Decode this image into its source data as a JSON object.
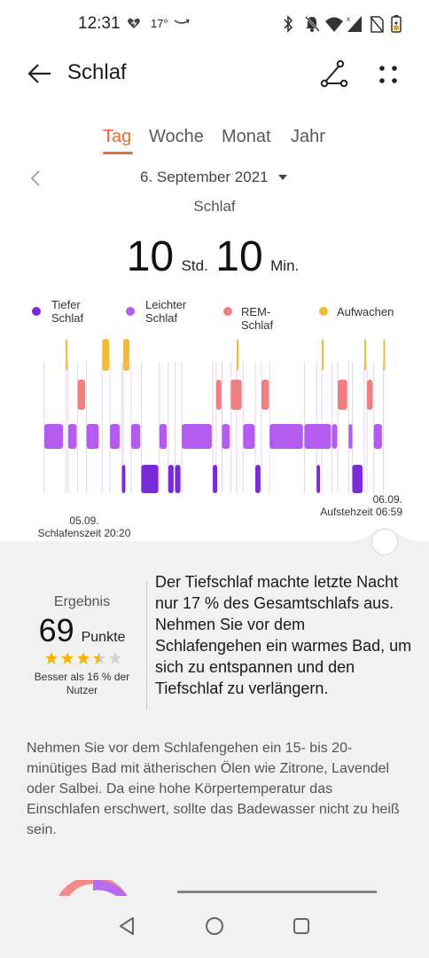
{
  "status_bar": {
    "time": "12:31",
    "temperature": "17°",
    "icons": [
      "heart-icon",
      "amazon-icon",
      "bluetooth-icon",
      "mute-icon",
      "wifi-icon",
      "signal-icon",
      "no-sim-icon",
      "battery-icon"
    ]
  },
  "app_bar": {
    "title": "Schlaf",
    "icons": [
      "back-arrow-icon",
      "share-icon",
      "more-icon"
    ]
  },
  "tabs": [
    {
      "label": "Tag",
      "active": true
    },
    {
      "label": "Woche",
      "active": false
    },
    {
      "label": "Monat",
      "active": false
    },
    {
      "label": "Jahr",
      "active": false
    }
  ],
  "date_selector": {
    "date": "6. September 2021",
    "icons": [
      "chevron-left-icon",
      "dropdown-caret-icon"
    ]
  },
  "summary": {
    "subtitle": "Schlaf",
    "hours": "10",
    "hours_unit": "Std.",
    "minutes": "10",
    "minutes_unit": "Min."
  },
  "legend": [
    {
      "label": "Tiefer\nSchlaf",
      "color": "#7a2ad8"
    },
    {
      "label": "Leichter\nSchlaf",
      "color": "#b45cf0"
    },
    {
      "label": "REM-Schlaf",
      "color": "#f08080"
    },
    {
      "label": "Aufwachen",
      "color": "#f7b931"
    }
  ],
  "chart_data": {
    "type": "timeline",
    "stages": [
      "Aufwachen",
      "REM-Schlaf",
      "Leichter Schlaf",
      "Tiefer Schlaf"
    ],
    "start_label": "05.09.\nSchlafenszeit 20:20",
    "end_label": "06.09.\nAufstehzeit 06:59",
    "colors": {
      "Aufwachen": "#f7b931",
      "REM-Schlaf": "#f08080",
      "Leichter Schlaf": "#b45cf0",
      "Tiefer Schlaf": "#7a2ad8"
    },
    "segments": [
      {
        "stage": "Leichter Schlaf",
        "start": 0.0,
        "end": 0.055
      },
      {
        "stage": "Aufwachen",
        "start": 0.063,
        "end": 0.068
      },
      {
        "stage": "Leichter Schlaf",
        "start": 0.07,
        "end": 0.095
      },
      {
        "stage": "REM-Schlaf",
        "start": 0.098,
        "end": 0.12
      },
      {
        "stage": "Leichter Schlaf",
        "start": 0.124,
        "end": 0.16
      },
      {
        "stage": "Aufwachen",
        "start": 0.17,
        "end": 0.19
      },
      {
        "stage": "Leichter Schlaf",
        "start": 0.193,
        "end": 0.222
      },
      {
        "stage": "Aufwachen",
        "start": 0.232,
        "end": 0.25
      },
      {
        "stage": "Tiefer Schlaf",
        "start": 0.228,
        "end": 0.238
      },
      {
        "stage": "Leichter Schlaf",
        "start": 0.255,
        "end": 0.282
      },
      {
        "stage": "Tiefer Schlaf",
        "start": 0.285,
        "end": 0.335
      },
      {
        "stage": "Leichter Schlaf",
        "start": 0.338,
        "end": 0.36
      },
      {
        "stage": "Tiefer Schlaf",
        "start": 0.364,
        "end": 0.38
      },
      {
        "stage": "Tiefer Schlaf",
        "start": 0.384,
        "end": 0.4
      },
      {
        "stage": "Leichter Schlaf",
        "start": 0.404,
        "end": 0.492
      },
      {
        "stage": "Tiefer Schlaf",
        "start": 0.495,
        "end": 0.508
      },
      {
        "stage": "REM-Schlaf",
        "start": 0.505,
        "end": 0.52
      },
      {
        "stage": "Leichter Schlaf",
        "start": 0.522,
        "end": 0.545
      },
      {
        "stage": "REM-Schlaf",
        "start": 0.548,
        "end": 0.58
      },
      {
        "stage": "Aufwachen",
        "start": 0.565,
        "end": 0.568
      },
      {
        "stage": "Leichter Schlaf",
        "start": 0.584,
        "end": 0.618
      },
      {
        "stage": "Tiefer Schlaf",
        "start": 0.62,
        "end": 0.635
      },
      {
        "stage": "REM-Schlaf",
        "start": 0.638,
        "end": 0.66
      },
      {
        "stage": "Leichter Schlaf",
        "start": 0.662,
        "end": 0.76
      },
      {
        "stage": "Leichter Schlaf",
        "start": 0.764,
        "end": 0.842
      },
      {
        "stage": "Tiefer Schlaf",
        "start": 0.8,
        "end": 0.81
      },
      {
        "stage": "Aufwachen",
        "start": 0.815,
        "end": 0.818
      },
      {
        "stage": "Leichter Schlaf",
        "start": 0.845,
        "end": 0.86
      },
      {
        "stage": "REM-Schlaf",
        "start": 0.862,
        "end": 0.89
      },
      {
        "stage": "Leichter Schlaf",
        "start": 0.894,
        "end": 0.905
      },
      {
        "stage": "Tiefer Schlaf",
        "start": 0.905,
        "end": 0.935
      },
      {
        "stage": "Aufwachen",
        "start": 0.94,
        "end": 0.944
      },
      {
        "stage": "REM-Schlaf",
        "start": 0.948,
        "end": 0.965
      },
      {
        "stage": "Leichter Schlaf",
        "start": 0.968,
        "end": 0.992
      },
      {
        "stage": "Aufwachen",
        "start": 0.996,
        "end": 1.0
      }
    ]
  },
  "result": {
    "label": "Ergebnis",
    "score": "69",
    "unit": "Punkte",
    "stars": 3.5,
    "comparison": "Besser als 16 % der Nutzer",
    "tip": "Der Tiefschlaf machte letzte Nacht nur 17 % des Gesamtschlafs aus. Nehmen Sie vor dem Schlafengehen ein warmes Bad, um sich zu entspannen und den Tiefschlaf zu verlängern."
  },
  "advice": "Nehmen Sie vor dem Schlafengehen ein 15- bis 20-minütiges Bad mit ätherischen Ölen wie Zitrone, Lavendel oder Salbei. Da eine hohe Körpertemperatur das Einschlafen erschwert, sollte das Badewasser nicht zu heiß sein.",
  "nav_bar": {
    "icons": [
      "back-triangle-icon",
      "home-circle-icon",
      "recents-square-icon"
    ]
  }
}
